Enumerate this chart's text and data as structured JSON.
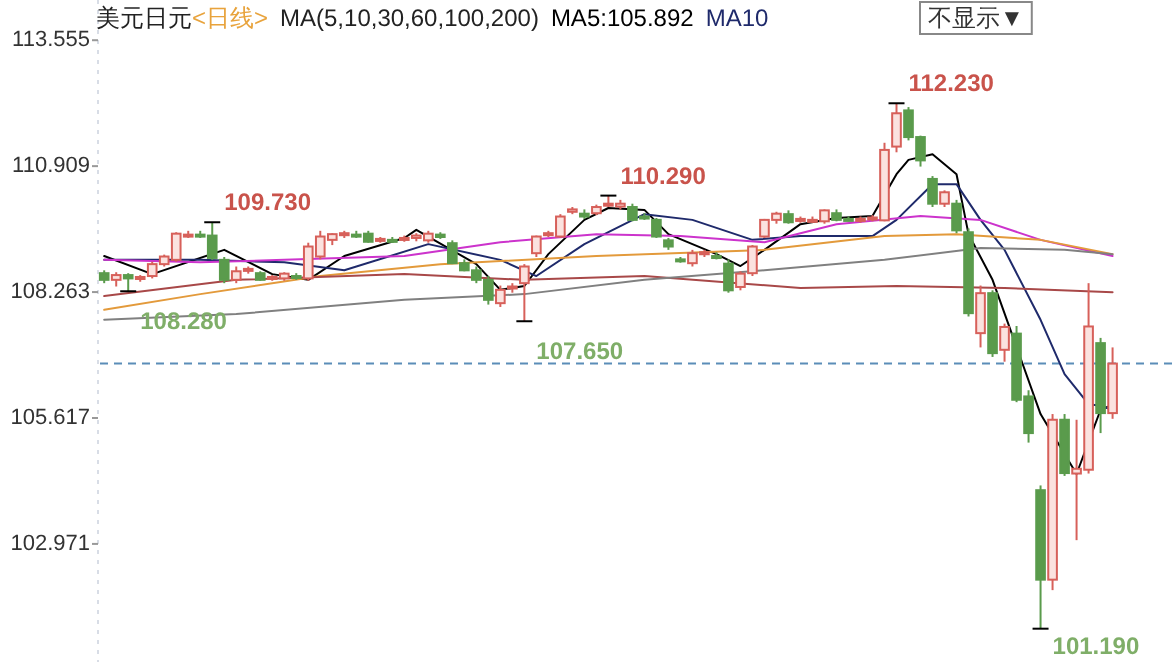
{
  "chart_data": {
    "type": "candlestick",
    "title": "美元日元",
    "subtitle": "<日线>",
    "categories": [
      null,
      null,
      null,
      null,
      null,
      null,
      null,
      null,
      null,
      null,
      null,
      null,
      null,
      null,
      null,
      null,
      null,
      null,
      null,
      null,
      null,
      null,
      null,
      null,
      null,
      null,
      null,
      null,
      null,
      null,
      null,
      null,
      null,
      null,
      null,
      null,
      null,
      null,
      null,
      null,
      null,
      null,
      null,
      null,
      null,
      null,
      null,
      null,
      null,
      null,
      null,
      null,
      null,
      null,
      null,
      null,
      null,
      null,
      null,
      null,
      null,
      null,
      null,
      null,
      null,
      null,
      null,
      null,
      null,
      null,
      null,
      null,
      null,
      null,
      null,
      null,
      null,
      null,
      null,
      null,
      null,
      null,
      null,
      null,
      null
    ],
    "ohlc": [
      [
        108.66,
        108.72,
        108.45,
        108.52
      ],
      [
        108.52,
        108.68,
        108.38,
        108.62
      ],
      [
        108.62,
        108.66,
        108.28,
        108.55
      ],
      [
        108.55,
        108.62,
        108.48,
        108.58
      ],
      [
        108.6,
        108.9,
        108.55,
        108.85
      ],
      [
        108.85,
        109.05,
        108.8,
        109.01
      ],
      [
        108.94,
        109.52,
        108.9,
        109.49
      ],
      [
        109.45,
        109.55,
        109.4,
        109.47
      ],
      [
        109.47,
        109.55,
        109.4,
        109.45
      ],
      [
        109.45,
        109.73,
        108.94,
        108.98
      ],
      [
        108.94,
        109.0,
        108.45,
        108.52
      ],
      [
        108.52,
        108.8,
        108.45,
        108.7
      ],
      [
        108.72,
        108.8,
        108.65,
        108.75
      ],
      [
        108.66,
        108.7,
        108.5,
        108.52
      ],
      [
        108.55,
        108.62,
        108.5,
        108.58
      ],
      [
        108.55,
        108.68,
        108.5,
        108.65
      ],
      [
        108.6,
        108.66,
        108.52,
        108.58
      ],
      [
        108.55,
        109.3,
        108.5,
        109.22
      ],
      [
        109.01,
        109.55,
        108.95,
        109.43
      ],
      [
        109.36,
        109.5,
        109.25,
        109.48
      ],
      [
        109.48,
        109.55,
        109.4,
        109.5
      ],
      [
        109.47,
        109.55,
        109.4,
        109.45
      ],
      [
        109.49,
        109.55,
        109.3,
        109.32
      ],
      [
        109.36,
        109.42,
        109.3,
        109.38
      ],
      [
        109.36,
        109.42,
        109.3,
        109.35
      ],
      [
        109.38,
        109.45,
        109.32,
        109.4
      ],
      [
        109.4,
        109.5,
        109.33,
        109.45
      ],
      [
        109.35,
        109.55,
        109.3,
        109.49
      ],
      [
        109.47,
        109.52,
        109.38,
        109.42
      ],
      [
        109.29,
        109.35,
        108.85,
        108.87
      ],
      [
        108.87,
        108.95,
        108.7,
        108.72
      ],
      [
        108.72,
        108.8,
        108.45,
        108.52
      ],
      [
        108.52,
        108.6,
        108.0,
        108.1
      ],
      [
        108.03,
        108.4,
        107.95,
        108.31
      ],
      [
        108.35,
        108.45,
        108.25,
        108.38
      ],
      [
        108.45,
        108.85,
        107.65,
        108.8
      ],
      [
        109.08,
        109.45,
        109.0,
        109.43
      ],
      [
        109.48,
        109.55,
        109.42,
        109.5
      ],
      [
        109.43,
        109.9,
        109.4,
        109.85
      ],
      [
        109.95,
        110.05,
        109.9,
        110.0
      ],
      [
        109.91,
        110.0,
        109.8,
        109.85
      ],
      [
        109.92,
        110.1,
        109.88,
        110.05
      ],
      [
        110.1,
        110.29,
        110.05,
        110.12
      ],
      [
        110.06,
        110.2,
        110.0,
        110.12
      ],
      [
        110.05,
        110.12,
        109.75,
        109.78
      ],
      [
        109.85,
        109.92,
        109.78,
        109.84
      ],
      [
        109.78,
        109.82,
        109.4,
        109.43
      ],
      [
        109.35,
        109.4,
        109.15,
        109.22
      ],
      [
        108.95,
        109.0,
        108.88,
        108.93
      ],
      [
        108.87,
        109.15,
        108.8,
        109.08
      ],
      [
        109.08,
        109.15,
        109.0,
        109.1
      ],
      [
        109.02,
        109.1,
        108.95,
        109.0
      ],
      [
        108.86,
        108.95,
        108.25,
        108.3
      ],
      [
        108.37,
        108.7,
        108.3,
        108.65
      ],
      [
        108.66,
        109.25,
        108.6,
        109.22
      ],
      [
        109.43,
        109.8,
        109.4,
        109.78
      ],
      [
        109.78,
        109.95,
        109.7,
        109.91
      ],
      [
        109.9,
        109.98,
        109.7,
        109.73
      ],
      [
        109.78,
        109.85,
        109.72,
        109.8
      ],
      [
        109.77,
        109.85,
        109.72,
        109.78
      ],
      [
        109.75,
        110.0,
        109.7,
        109.98
      ],
      [
        109.92,
        110.0,
        109.75,
        109.78
      ],
      [
        109.8,
        109.85,
        109.75,
        109.78
      ],
      [
        109.78,
        109.85,
        109.72,
        109.8
      ],
      [
        109.8,
        109.88,
        109.75,
        109.83
      ],
      [
        109.77,
        111.4,
        109.75,
        111.25
      ],
      [
        111.32,
        112.23,
        111.2,
        112.02
      ],
      [
        112.08,
        112.15,
        111.45,
        111.52
      ],
      [
        111.52,
        111.55,
        110.9,
        111.03
      ],
      [
        110.64,
        110.7,
        110.05,
        110.12
      ],
      [
        110.12,
        110.4,
        110.05,
        110.36
      ],
      [
        110.12,
        110.2,
        109.5,
        109.56
      ],
      [
        109.52,
        109.6,
        107.75,
        107.82
      ],
      [
        107.4,
        108.4,
        107.1,
        108.24
      ],
      [
        108.24,
        108.3,
        106.9,
        106.98
      ],
      [
        107.05,
        107.6,
        106.8,
        107.53
      ],
      [
        107.39,
        107.55,
        105.95,
        106.0
      ],
      [
        106.07,
        106.2,
        105.1,
        105.3
      ],
      [
        104.1,
        104.2,
        101.19,
        102.22
      ],
      [
        102.22,
        105.7,
        102.0,
        105.58
      ],
      [
        105.58,
        105.7,
        104.4,
        104.46
      ],
      [
        104.45,
        105.58,
        103.05,
        104.55
      ],
      [
        104.53,
        108.45,
        104.45,
        107.54
      ],
      [
        107.19,
        107.3,
        105.3,
        105.72
      ],
      [
        105.72,
        107.1,
        105.6,
        106.76
      ]
    ],
    "series": [
      {
        "type": "line",
        "name": "MA5:105.892",
        "color": "#000000",
        "values": [
          109.02,
          null,
          null,
          null,
          108.64,
          null,
          null,
          null,
          null,
          null,
          109.15,
          null,
          null,
          null,
          108.64,
          null,
          null,
          108.52,
          null,
          null,
          109.02,
          null,
          null,
          null,
          null,
          109.4,
          109.57,
          null,
          null,
          null,
          null,
          108.85,
          null,
          108.31,
          null,
          108.39,
          null,
          109.06,
          null,
          null,
          109.78,
          null,
          110.03,
          null,
          null,
          109.99,
          null,
          109.48,
          null,
          null,
          null,
          109.06,
          null,
          108.81,
          null,
          109.15,
          null,
          null,
          109.69,
          null,
          null,
          109.82,
          null,
          null,
          109.86,
          null,
          110.74,
          111.04,
          null,
          111.16,
          null,
          110.74,
          109.48,
          null,
          108.52,
          null,
          null,
          null,
          105.7,
          null,
          null,
          104.44,
          null,
          105.79,
          105.892
        ]
      },
      {
        "type": "line",
        "name": "MA10",
        "color": "#1f2a6b",
        "values": [
          108.94,
          null,
          null,
          null,
          null,
          null,
          null,
          null,
          108.94,
          null,
          null,
          null,
          null,
          null,
          null,
          108.89,
          null,
          null,
          null,
          null,
          108.72,
          null,
          null,
          null,
          null,
          null,
          null,
          109.27,
          null,
          null,
          null,
          null,
          null,
          108.94,
          null,
          null,
          108.6,
          null,
          null,
          null,
          109.27,
          null,
          null,
          null,
          null,
          109.9,
          null,
          null,
          null,
          109.78,
          null,
          null,
          null,
          null,
          109.36,
          null,
          null,
          null,
          109.44,
          null,
          null,
          null,
          null,
          null,
          109.44,
          null,
          109.78,
          null,
          null,
          110.53,
          null,
          110.53,
          null,
          109.78,
          null,
          109.15,
          null,
          null,
          107.68,
          null,
          106.54,
          null,
          105.91,
          105.87,
          105.79
        ]
      },
      {
        "type": "line",
        "color": "#cc33cc",
        "values": [
          108.94,
          null,
          null,
          null,
          null,
          null,
          null,
          null,
          108.89,
          null,
          null,
          null,
          null,
          null,
          null,
          108.94,
          null,
          null,
          null,
          null,
          null,
          null,
          null,
          null,
          null,
          109.02,
          null,
          null,
          null,
          null,
          null,
          null,
          null,
          109.31,
          null,
          null,
          null,
          null,
          null,
          null,
          null,
          109.48,
          null,
          null,
          null,
          null,
          null,
          null,
          109.44,
          null,
          null,
          null,
          null,
          null,
          null,
          109.31,
          null,
          null,
          null,
          null,
          null,
          109.69,
          null,
          null,
          null,
          null,
          null,
          null,
          109.86,
          null,
          null,
          null,
          null,
          109.78,
          null,
          null,
          null,
          null,
          109.36,
          null,
          null,
          null,
          null,
          null,
          109.02
        ]
      },
      {
        "type": "line",
        "color": "#e39a3b",
        "values": [
          107.89,
          null,
          null,
          null,
          null,
          null,
          null,
          null,
          108.22,
          null,
          null,
          null,
          null,
          null,
          null,
          null,
          null,
          null,
          108.6,
          null,
          null,
          null,
          null,
          null,
          null,
          null,
          null,
          null,
          108.85,
          null,
          null,
          null,
          null,
          null,
          null,
          null,
          null,
          null,
          null,
          null,
          null,
          109.02,
          null,
          null,
          null,
          null,
          null,
          null,
          null,
          null,
          null,
          null,
          null,
          null,
          null,
          109.15,
          null,
          null,
          null,
          null,
          null,
          null,
          null,
          null,
          null,
          109.44,
          null,
          null,
          null,
          null,
          null,
          109.48,
          null,
          null,
          null,
          null,
          null,
          null,
          109.36,
          null,
          null,
          null,
          null,
          null,
          109.06
        ]
      },
      {
        "type": "line",
        "color": "#a84848",
        "values": [
          108.18,
          null,
          null,
          null,
          null,
          null,
          null,
          null,
          null,
          null,
          null,
          108.52,
          null,
          null,
          null,
          null,
          null,
          null,
          null,
          null,
          null,
          null,
          null,
          null,
          null,
          108.64,
          null,
          null,
          null,
          null,
          null,
          null,
          null,
          null,
          null,
          108.52,
          null,
          null,
          null,
          null,
          null,
          null,
          null,
          null,
          null,
          108.6,
          null,
          null,
          null,
          null,
          null,
          null,
          null,
          null,
          null,
          null,
          null,
          null,
          108.35,
          null,
          null,
          null,
          null,
          null,
          null,
          null,
          108.39,
          null,
          null,
          null,
          null,
          null,
          null,
          null,
          null,
          108.35,
          null,
          null,
          null,
          null,
          null,
          null,
          null,
          null,
          108.26
        ]
      },
      {
        "type": "line",
        "color": "#808080",
        "values": [
          107.68,
          null,
          null,
          null,
          null,
          null,
          null,
          null,
          null,
          null,
          null,
          107.8,
          null,
          null,
          null,
          null,
          null,
          null,
          null,
          null,
          null,
          null,
          null,
          null,
          null,
          108.1,
          null,
          null,
          null,
          null,
          null,
          null,
          null,
          null,
          null,
          108.22,
          null,
          null,
          null,
          null,
          null,
          null,
          null,
          null,
          null,
          108.52,
          null,
          null,
          null,
          null,
          null,
          null,
          null,
          null,
          null,
          108.72,
          null,
          null,
          null,
          null,
          null,
          null,
          null,
          null,
          null,
          108.94,
          null,
          null,
          null,
          null,
          null,
          null,
          null,
          109.19,
          null,
          null,
          null,
          null,
          null,
          null,
          109.15,
          null,
          null,
          null,
          109.06
        ]
      }
    ],
    "ylim": [
      100.49,
      114.4
    ],
    "yticks": [
      113.555,
      110.909,
      108.263,
      105.617,
      102.971
    ],
    "tick_labels": "y",
    "ref_lines": [
      {
        "axis": "y",
        "value": 106.76,
        "color": "#5b8db8",
        "line_style": "dashed"
      }
    ],
    "annotations": [
      "MA(5,10,30,60,100,200)",
      "不显示▼",
      "109.730",
      "108.280",
      "110.290",
      "107.650",
      "112.230",
      "101.190"
    ]
  }
}
